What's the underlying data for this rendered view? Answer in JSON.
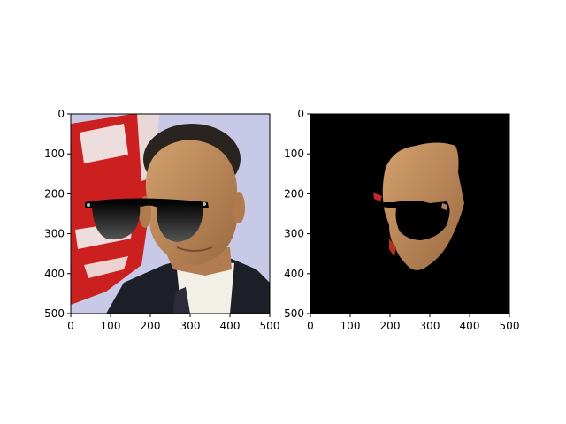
{
  "chart_data": [
    {
      "type": "image",
      "title": "",
      "xlabel": "",
      "ylabel": "",
      "xlim": [
        0,
        500
      ],
      "ylim": [
        500,
        0
      ],
      "x_ticks": [
        0,
        100,
        200,
        300,
        400,
        500
      ],
      "y_ticks": [
        0,
        100,
        200,
        300,
        400,
        500
      ],
      "content": "photo-with-sunglasses"
    },
    {
      "type": "image",
      "title": "",
      "xlabel": "",
      "ylabel": "",
      "xlim": [
        0,
        500
      ],
      "ylim": [
        500,
        0
      ],
      "x_ticks": [
        0,
        100,
        200,
        300,
        400,
        500
      ],
      "y_ticks": [
        0,
        100,
        200,
        300,
        400,
        500
      ],
      "content": "segmented-face-on-black"
    }
  ],
  "colors": {
    "axis": "#000000",
    "mask_background": "#000000",
    "skin": "#c08a5a",
    "lens": "#111111"
  }
}
